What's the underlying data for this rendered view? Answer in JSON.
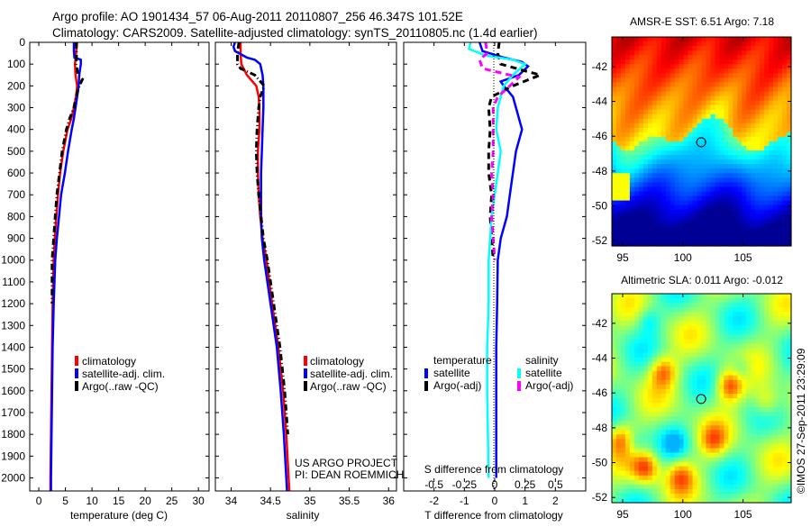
{
  "title_line1": "Argo profile: AO 1901434_57 06-Aug-2011 20110807_256 46.347S 101.52E",
  "title_line2": "Climatology: CARS2009. Satellite-adjusted climatology: synTS_20110805.nc (1.4d earlier)",
  "credit": "US ARGO PROJECT",
  "pi": "PI: DEAN ROEMMICH",
  "copyright": "©IMOS 27-Sep-2011 23:29:09",
  "colors": {
    "climatology": "#ff0000",
    "satellite": "#0000ff",
    "argo": "#000000",
    "sal_satellite": "#00ffff",
    "sal_argo": "#ff00ff"
  },
  "chart_data": [
    {
      "type": "line",
      "name": "temperature-profile",
      "xlabel": "temperature (deg C)",
      "ylabel": "",
      "xlim": [
        -1.7,
        32
      ],
      "ylim": [
        2060,
        0
      ],
      "xticks": [
        "0",
        "5",
        "10",
        "15",
        "20",
        "25",
        "30"
      ],
      "xtick_values": [
        0,
        5,
        10,
        15,
        20,
        25,
        30
      ],
      "yticks": [
        "0",
        "100",
        "200",
        "300",
        "400",
        "500",
        "600",
        "700",
        "800",
        "900",
        "1000",
        "1100",
        "1200",
        "1300",
        "1400",
        "1500",
        "1600",
        "1700",
        "1800",
        "1900",
        "2000"
      ],
      "ytick_values": [
        0,
        100,
        200,
        300,
        400,
        500,
        600,
        700,
        800,
        900,
        1000,
        1100,
        1200,
        1300,
        1400,
        1500,
        1600,
        1700,
        1800,
        1900,
        2000
      ],
      "legend": [
        "climatology",
        "satellite-adj. clim.",
        "Argo(..raw -QC)"
      ],
      "legend_position": "lower-center",
      "series": [
        {
          "name": "climatology",
          "depth": [
            0,
            50,
            100,
            150,
            200,
            250,
            300,
            350,
            400,
            500,
            600,
            700,
            800,
            900,
            1000,
            1200,
            1400,
            1600,
            1800,
            2000,
            2060
          ],
          "values": [
            7.2,
            7.0,
            6.8,
            6.9,
            7.2,
            7.0,
            6.6,
            6.1,
            5.4,
            4.6,
            4.0,
            3.6,
            3.3,
            3.0,
            2.8,
            2.6,
            2.5,
            2.4,
            2.3,
            2.2,
            2.2
          ]
        },
        {
          "name": "satellite-adj. clim.",
          "depth": [
            0,
            40,
            70,
            80,
            100,
            150,
            200,
            250,
            300,
            350,
            400,
            500,
            600,
            700,
            800,
            900,
            1000,
            1200,
            1400,
            1600,
            1800,
            2000,
            2060
          ],
          "values": [
            6.6,
            6.6,
            6.7,
            7.9,
            7.9,
            7.6,
            7.5,
            7.2,
            6.9,
            6.6,
            6.2,
            5.5,
            4.9,
            4.2,
            3.8,
            3.4,
            3.1,
            2.8,
            2.6,
            2.5,
            2.4,
            2.3,
            2.3
          ]
        },
        {
          "name": "Argo(..raw -QC)",
          "depth": [
            0,
            50,
            100,
            150,
            170,
            200,
            250,
            300,
            350,
            400,
            500,
            600,
            700,
            800,
            900,
            1000,
            1100,
            1200
          ],
          "values": [
            7.0,
            7.1,
            7.0,
            7.4,
            8.2,
            7.6,
            7.0,
            6.6,
            5.8,
            5.2,
            4.4,
            3.9,
            3.4,
            3.1,
            2.8,
            2.5,
            2.5,
            2.5
          ]
        }
      ]
    },
    {
      "type": "line",
      "name": "salinity-profile",
      "xlabel": "salinity",
      "xlim": [
        33.8,
        36.1
      ],
      "ylim": [
        2060,
        0
      ],
      "xticks": [
        "34",
        "34.5",
        "35",
        "35.5",
        "36"
      ],
      "xtick_values": [
        34,
        34.5,
        35,
        35.5,
        36
      ],
      "legend": [
        "climatology",
        "satellite-adj. clim.",
        "Argo(..raw -QC)"
      ],
      "legend_position": "lower-right",
      "series": [
        {
          "name": "climatology",
          "depth": [
            0,
            50,
            100,
            150,
            200,
            250,
            300,
            400,
            500,
            600,
            700,
            800,
            900,
            1000,
            1200,
            1400,
            1600,
            1800,
            2000,
            2060
          ],
          "values": [
            34.12,
            34.12,
            34.13,
            34.2,
            34.32,
            34.35,
            34.36,
            34.36,
            34.34,
            34.34,
            34.35,
            34.37,
            34.4,
            34.45,
            34.52,
            34.6,
            34.66,
            34.7,
            34.73,
            34.74
          ]
        },
        {
          "name": "satellite-adj. clim.",
          "depth": [
            0,
            20,
            40,
            60,
            70,
            80,
            100,
            150,
            200,
            300,
            400,
            500,
            600,
            700,
            800,
            900,
            1000,
            1200,
            1400,
            1600,
            1800,
            2000,
            2060
          ],
          "values": [
            34.05,
            34.03,
            34.05,
            34.15,
            34.2,
            34.3,
            34.37,
            34.4,
            34.41,
            34.41,
            34.4,
            34.39,
            34.38,
            34.38,
            34.38,
            34.39,
            34.42,
            34.5,
            34.58,
            34.63,
            34.67,
            34.7,
            34.71
          ]
        },
        {
          "name": "Argo(..raw -QC)",
          "depth": [
            0,
            50,
            100,
            120,
            150,
            200,
            250,
            300,
            400,
            500,
            600,
            700,
            800,
            900,
            1000,
            1200,
            1400,
            1600,
            1800
          ],
          "values": [
            34.1,
            34.08,
            34.08,
            34.12,
            34.3,
            34.42,
            34.37,
            34.35,
            34.33,
            34.32,
            34.33,
            34.35,
            34.38,
            34.41,
            34.46,
            34.54,
            34.62,
            34.68,
            34.72
          ]
        }
      ]
    },
    {
      "type": "line",
      "name": "difference-profile",
      "xlabel": "T difference from climatology",
      "xlabel_top": "S difference from climatology",
      "xlim": [
        -3,
        3
      ],
      "ylim": [
        2060,
        0
      ],
      "xticks": [
        "-2",
        "-1",
        "0",
        "1",
        "2"
      ],
      "xtick_values": [
        -2,
        -1,
        0,
        1,
        2
      ],
      "xticks_top": [
        "-0.5",
        "-0.25",
        "0",
        "0.25",
        "0.5"
      ],
      "xtick_top_values": [
        -0.5,
        -0.25,
        0,
        0.25,
        0.5
      ],
      "legend_temperature_title": "temperature",
      "legend_salinity_title": "salinity",
      "legend": [
        "satellite",
        "Argo(-adj)",
        "satellite",
        "Argo(-adj)"
      ],
      "legend_position": "lower-center",
      "series": [
        {
          "name": "temperature satellite",
          "depth": [
            0,
            40,
            70,
            90,
            110,
            150,
            180,
            200,
            250,
            300,
            400,
            500,
            600,
            700,
            800,
            900,
            1000,
            1200,
            1400,
            1600,
            2000
          ],
          "values": [
            -0.5,
            -0.4,
            0.3,
            0.9,
            1.1,
            0.8,
            0.2,
            0.3,
            0.6,
            0.7,
            0.9,
            0.7,
            0.6,
            0.5,
            0.4,
            0.2,
            0.1,
            0.08,
            0.05,
            0.05,
            0.05
          ]
        },
        {
          "name": "temperature Argo(-adj)",
          "depth": [
            0,
            50,
            100,
            150,
            200,
            250,
            300,
            400,
            500,
            600,
            700,
            800,
            900,
            1000
          ],
          "values": [
            0.15,
            0.1,
            0.2,
            1.5,
            0.6,
            -0.1,
            -0.2,
            -0.15,
            -0.2,
            -0.2,
            -0.1,
            -0.15,
            -0.1,
            -0.05
          ]
        },
        {
          "name": "salinity satellite",
          "depth": [
            0,
            30,
            60,
            80,
            100,
            150,
            200,
            250,
            300,
            400,
            500,
            600,
            700,
            800,
            900,
            1000,
            1200,
            1400,
            1600,
            2000
          ],
          "values": [
            -0.8,
            -0.85,
            -0.3,
            0.6,
            1.0,
            0.6,
            0.3,
            0.2,
            0.1,
            0.05,
            0.2,
            0.1,
            0.0,
            -0.1,
            -0.15,
            -0.2,
            -0.2,
            -0.25,
            -0.25,
            -0.2
          ]
        },
        {
          "name": "salinity Argo(-adj)",
          "depth": [
            0,
            50,
            80,
            120,
            160,
            200,
            250,
            300,
            400,
            500,
            600,
            700,
            800,
            900,
            1000
          ],
          "values": [
            -0.3,
            -0.25,
            -0.5,
            -0.4,
            0.8,
            0.5,
            0.1,
            -0.05,
            -0.05,
            -0.05,
            -0.1,
            -0.05,
            -0.1,
            -0.05,
            0.0
          ]
        }
      ]
    },
    {
      "type": "heatmap",
      "name": "sst-map",
      "title": "AMSR-E SST: 6.51 Argo: 7.18",
      "xticks": [
        "95",
        "100",
        "105"
      ],
      "xtick_values": [
        95,
        100,
        105
      ],
      "yticks": [
        "-42",
        "-44",
        "-46",
        "-48",
        "-50",
        "-52"
      ],
      "ytick_values": [
        -42,
        -44,
        -46,
        -48,
        -50,
        -52
      ],
      "xlim": [
        94.1,
        109
      ],
      "ylim": [
        -52.3,
        -40.3
      ],
      "argo_position": [
        101.52,
        -46.347
      ],
      "value_range": [
        3,
        10
      ]
    },
    {
      "type": "heatmap",
      "name": "sla-map",
      "title": "Altimetric SLA: 0.011 Argo: -0.012",
      "xticks": [
        "95",
        "100",
        "105"
      ],
      "xtick_values": [
        95,
        100,
        105
      ],
      "yticks": [
        "-42",
        "-44",
        "-46",
        "-48",
        "-50",
        "-52"
      ],
      "ytick_values": [
        -42,
        -44,
        -46,
        -48,
        -50,
        -52
      ],
      "xlim": [
        94.1,
        109
      ],
      "ylim": [
        -52.3,
        -40.3
      ],
      "argo_position": [
        101.52,
        -46.347
      ],
      "value_range": [
        -0.3,
        0.3
      ]
    }
  ]
}
